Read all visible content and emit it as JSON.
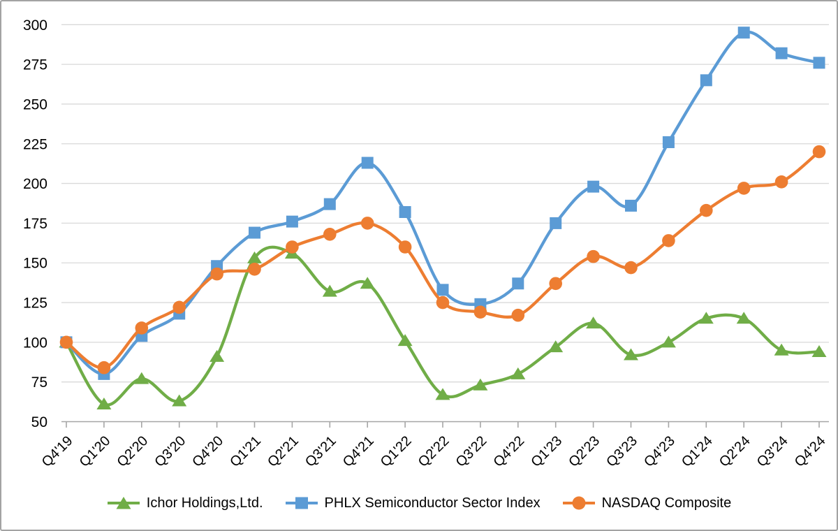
{
  "chart_data": {
    "type": "line",
    "title": "",
    "xlabel": "",
    "ylabel": "",
    "grid": "horizontal",
    "legend_position": "bottom",
    "ylim": [
      50,
      300
    ],
    "yticks": [
      50,
      75,
      100,
      125,
      150,
      175,
      200,
      225,
      250,
      275,
      300
    ],
    "categories": [
      "Q4'19",
      "Q1'20",
      "Q2'20",
      "Q3'20",
      "Q4'20",
      "Q1'21",
      "Q2'21",
      "Q3'21",
      "Q4'21",
      "Q1'22",
      "Q2'22",
      "Q3'22",
      "Q4'22",
      "Q1'23",
      "Q2'23",
      "Q3'23",
      "Q4'23",
      "Q1'24",
      "Q2'24",
      "Q3'24",
      "Q4'24"
    ],
    "series": [
      {
        "name": "Ichor Holdings,Ltd.",
        "marker": "triangle",
        "color": "#70AD47",
        "values": [
          100,
          61,
          77,
          63,
          91,
          153,
          156,
          132,
          137,
          101,
          67,
          73,
          80,
          97,
          112,
          92,
          100,
          115,
          115,
          95,
          94
        ]
      },
      {
        "name": "PHLX Semiconductor Sector Index",
        "marker": "square",
        "color": "#5B9BD5",
        "values": [
          100,
          80,
          104,
          118,
          148,
          169,
          176,
          187,
          213,
          182,
          133,
          124,
          137,
          175,
          198,
          186,
          226,
          265,
          295,
          282,
          276
        ]
      },
      {
        "name": "NASDAQ Composite",
        "marker": "circle",
        "color": "#ED7D31",
        "values": [
          100,
          84,
          109,
          122,
          143,
          146,
          160,
          168,
          175,
          160,
          125,
          119,
          117,
          137,
          154,
          147,
          164,
          183,
          197,
          201,
          220
        ]
      }
    ]
  },
  "colors": {
    "gridline": "#D9D9D9",
    "axis": "#A6A6A6",
    "tick_text": "#000000",
    "background": "#FFFFFF",
    "frame_border": "#A3A3A3"
  }
}
